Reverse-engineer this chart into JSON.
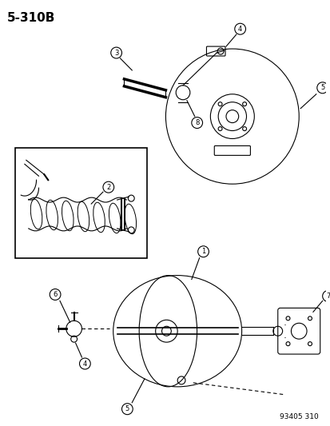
{
  "title": "5-310B",
  "part_number": "93405 310",
  "bg_color": "#ffffff",
  "line_color": "#000000",
  "label_color": "#000000",
  "fig_width": 4.14,
  "fig_height": 5.33,
  "dpi": 100
}
